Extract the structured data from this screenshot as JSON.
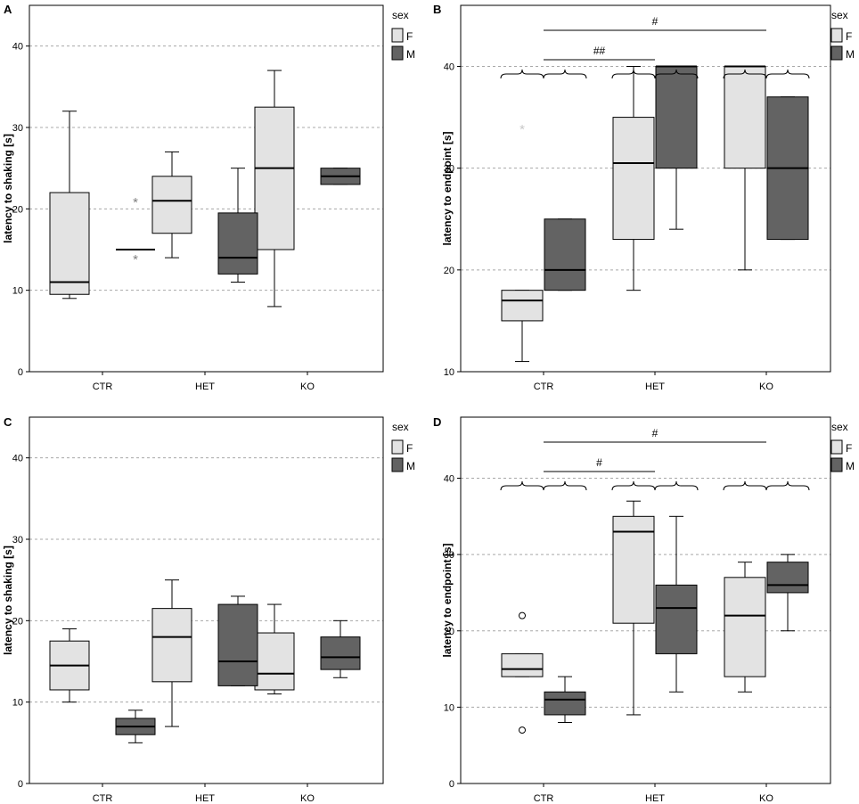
{
  "colors": {
    "female": "#e3e3e3",
    "male": "#636363",
    "outlier_light": "#c8c8c8",
    "outlier_dark": "#808080"
  },
  "chart_data": [
    {
      "panel": "A",
      "type": "boxplot",
      "ylabel": "latency to shaking [s]",
      "ylim": [
        0,
        45
      ],
      "yticks": [
        "0",
        "10",
        "20",
        "30",
        "40"
      ],
      "grid_lines": [
        10,
        20,
        30,
        40
      ],
      "categories": [
        "CTR",
        "HET",
        "KO"
      ],
      "legend": {
        "title": "sex",
        "entries": [
          "F",
          "M"
        ],
        "position": "right"
      },
      "series": [
        {
          "name": "F",
          "boxes": [
            {
              "category": "CTR",
              "min": 9,
              "q1": 9.5,
              "median": 11,
              "q3": 22,
              "max": 32,
              "outliers": []
            },
            {
              "category": "HET",
              "min": 14,
              "q1": 17,
              "median": 21,
              "q3": 24,
              "max": 27,
              "outliers": []
            },
            {
              "category": "KO",
              "min": 8,
              "q1": 15,
              "median": 25,
              "q3": 32.5,
              "max": 37,
              "outliers": []
            }
          ]
        },
        {
          "name": "M",
          "boxes": [
            {
              "category": "CTR",
              "min": 15,
              "q1": 15,
              "median": 15,
              "q3": 15,
              "max": 15,
              "outliers": [],
              "extremes": [
                21,
                14
              ]
            },
            {
              "category": "HET",
              "min": 11,
              "q1": 12,
              "median": 14,
              "q3": 19.5,
              "max": 25,
              "outliers": []
            },
            {
              "category": "KO",
              "min": 23,
              "q1": 23,
              "median": 24,
              "q3": 25,
              "max": 25,
              "outliers": []
            }
          ]
        }
      ],
      "annotations": []
    },
    {
      "panel": "B",
      "type": "boxplot",
      "ylabel": "latency to endpoint [s]",
      "ylim": [
        10,
        46
      ],
      "yticks": [
        "10",
        "20",
        "30",
        "40"
      ],
      "grid_lines": [
        20,
        30,
        40
      ],
      "categories": [
        "CTR",
        "HET",
        "KO"
      ],
      "legend": {
        "title": "sex",
        "entries": [
          "F",
          "M"
        ],
        "position": "right"
      },
      "series": [
        {
          "name": "F",
          "boxes": [
            {
              "category": "CTR",
              "min": 11,
              "q1": 15,
              "median": 17,
              "q3": 18,
              "max": 18,
              "outliers": [],
              "extremes": [
                34
              ]
            },
            {
              "category": "HET",
              "min": 18,
              "q1": 23,
              "median": 30.5,
              "q3": 35,
              "max": 40,
              "outliers": []
            },
            {
              "category": "KO",
              "min": 20,
              "q1": 30,
              "median": 40,
              "q3": 40,
              "max": 40,
              "outliers": []
            }
          ]
        },
        {
          "name": "M",
          "boxes": [
            {
              "category": "CTR",
              "min": 18,
              "q1": 18,
              "median": 20,
              "q3": 25,
              "max": 25,
              "outliers": []
            },
            {
              "category": "HET",
              "min": 24,
              "q1": 30,
              "median": 40,
              "q3": 40,
              "max": 40,
              "outliers": []
            },
            {
              "category": "KO",
              "min": 23,
              "q1": 23,
              "median": 30,
              "q3": 37,
              "max": 37,
              "outliers": []
            }
          ]
        }
      ],
      "annotations": [
        {
          "label": "#",
          "from": "CTR",
          "to": "KO",
          "level": 2
        },
        {
          "label": "##",
          "from": "CTR",
          "to": "HET",
          "level": 1
        }
      ]
    },
    {
      "panel": "C",
      "type": "boxplot",
      "ylabel": "latency to shaking [s]",
      "ylim": [
        0,
        45
      ],
      "yticks": [
        "0",
        "10",
        "20",
        "30",
        "40"
      ],
      "grid_lines": [
        10,
        20,
        30,
        40
      ],
      "categories": [
        "CTR",
        "HET",
        "KO"
      ],
      "legend": {
        "title": "sex",
        "entries": [
          "F",
          "M"
        ],
        "position": "right"
      },
      "series": [
        {
          "name": "F",
          "boxes": [
            {
              "category": "CTR",
              "min": 10,
              "q1": 11.5,
              "median": 14.5,
              "q3": 17.5,
              "max": 19,
              "outliers": []
            },
            {
              "category": "HET",
              "min": 7,
              "q1": 12.5,
              "median": 18,
              "q3": 21.5,
              "max": 25,
              "outliers": []
            },
            {
              "category": "KO",
              "min": 11,
              "q1": 11.5,
              "median": 13.5,
              "q3": 18.5,
              "max": 22,
              "outliers": []
            }
          ]
        },
        {
          "name": "M",
          "boxes": [
            {
              "category": "CTR",
              "min": 5,
              "q1": 6,
              "median": 7,
              "q3": 8,
              "max": 9,
              "outliers": []
            },
            {
              "category": "HET",
              "min": 12,
              "q1": 12,
              "median": 15,
              "q3": 22,
              "max": 23,
              "outliers": []
            },
            {
              "category": "KO",
              "min": 13,
              "q1": 14,
              "median": 15.5,
              "q3": 18,
              "max": 20,
              "outliers": []
            }
          ]
        }
      ],
      "annotations": []
    },
    {
      "panel": "D",
      "type": "boxplot",
      "ylabel": "latency to endpoint [s]",
      "ylim": [
        0,
        48
      ],
      "yticks": [
        "0",
        "10",
        "20",
        "30",
        "40"
      ],
      "grid_lines": [
        10,
        20,
        30,
        40
      ],
      "categories": [
        "CTR",
        "HET",
        "KO"
      ],
      "legend": {
        "title": "sex",
        "entries": [
          "F",
          "M"
        ],
        "position": "right"
      },
      "series": [
        {
          "name": "F",
          "boxes": [
            {
              "category": "CTR",
              "min": 14,
              "q1": 14,
              "median": 15,
              "q3": 17,
              "max": 17,
              "outliers": [
                22,
                7
              ]
            },
            {
              "category": "HET",
              "min": 9,
              "q1": 21,
              "median": 33,
              "q3": 35,
              "max": 37,
              "outliers": []
            },
            {
              "category": "KO",
              "min": 12,
              "q1": 14,
              "median": 22,
              "q3": 27,
              "max": 29,
              "outliers": []
            }
          ]
        },
        {
          "name": "M",
          "boxes": [
            {
              "category": "CTR",
              "min": 8,
              "q1": 9,
              "median": 11,
              "q3": 12,
              "max": 14,
              "outliers": []
            },
            {
              "category": "HET",
              "min": 12,
              "q1": 17,
              "median": 23,
              "q3": 26,
              "max": 35,
              "outliers": []
            },
            {
              "category": "KO",
              "min": 20,
              "q1": 25,
              "median": 26,
              "q3": 29,
              "max": 30,
              "outliers": []
            }
          ]
        }
      ],
      "annotations": [
        {
          "label": "#",
          "from": "CTR",
          "to": "KO",
          "level": 2
        },
        {
          "label": "#",
          "from": "CTR",
          "to": "HET",
          "level": 1
        }
      ]
    }
  ]
}
